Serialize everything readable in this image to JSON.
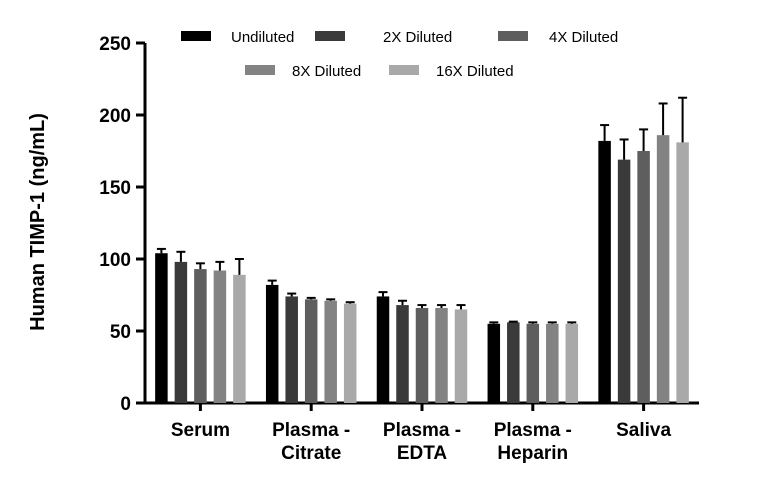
{
  "chart_data": {
    "type": "bar",
    "ylabel": "Human TIMP-1 (ng/mL)",
    "ylim": [
      0,
      250
    ],
    "yticks": [
      0,
      50,
      100,
      150,
      200,
      250
    ],
    "categories": [
      [
        "Serum"
      ],
      [
        "Plasma -",
        "Citrate"
      ],
      [
        "Plasma -",
        "EDTA"
      ],
      [
        "Plasma -",
        "Heparin"
      ],
      [
        "Saliva"
      ]
    ],
    "legend_position": "top",
    "series": [
      {
        "name": "Undiluted",
        "color": "#000000",
        "values": [
          104,
          82,
          74,
          55,
          182
        ],
        "errors": [
          3,
          3,
          3,
          1,
          11
        ]
      },
      {
        "name": "2X Diluted",
        "color": "#3a3a3a",
        "values": [
          98,
          74,
          68,
          56,
          169
        ],
        "errors": [
          7,
          2,
          3,
          0.5,
          14
        ]
      },
      {
        "name": "4X Diluted",
        "color": "#5e5e5e",
        "values": [
          93,
          72,
          66,
          55,
          175
        ],
        "errors": [
          4,
          1,
          2,
          1,
          15
        ]
      },
      {
        "name": "8X Diluted",
        "color": "#838383",
        "values": [
          92,
          71,
          66,
          55,
          186
        ],
        "errors": [
          6,
          1,
          2,
          1,
          22
        ]
      },
      {
        "name": "16X Diluted",
        "color": "#a9a9a9",
        "values": [
          89,
          69,
          65,
          55,
          181
        ],
        "errors": [
          11,
          1,
          3,
          1,
          31
        ]
      }
    ]
  }
}
